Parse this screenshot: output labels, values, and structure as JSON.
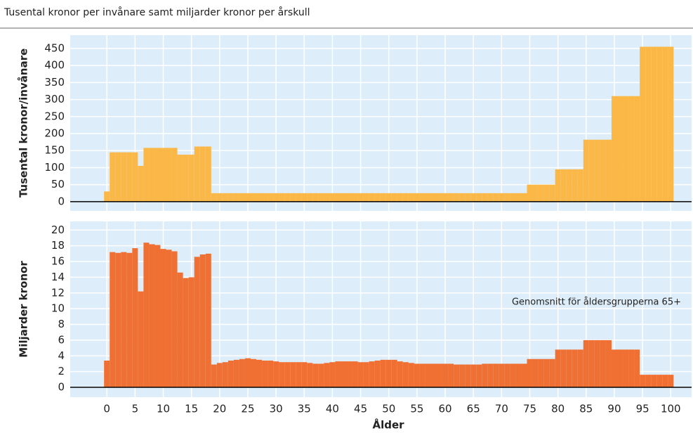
{
  "chart_data": [
    {
      "type": "bar",
      "title": "Tusental kronor per invånare samt miljarder kronor per årskull",
      "ylabel": "Tusental kronor/invånare",
      "color": "#fbb847",
      "x": [
        0,
        1,
        2,
        3,
        4,
        5,
        6,
        7,
        8,
        9,
        10,
        11,
        12,
        13,
        14,
        15,
        16,
        17,
        18,
        19,
        20,
        21,
        22,
        23,
        24,
        25,
        26,
        27,
        28,
        29,
        30,
        31,
        32,
        33,
        34,
        35,
        36,
        37,
        38,
        39,
        40,
        41,
        42,
        43,
        44,
        45,
        46,
        47,
        48,
        49,
        50,
        51,
        52,
        53,
        54,
        55,
        56,
        57,
        58,
        59,
        60,
        61,
        62,
        63,
        64,
        65,
        66,
        67,
        68,
        69,
        70,
        71,
        72,
        73,
        74,
        75,
        76,
        77,
        78,
        79,
        80,
        81,
        82,
        83,
        84,
        85,
        86,
        87,
        88,
        89,
        90,
        91,
        92,
        93,
        94,
        95,
        96,
        97,
        98,
        99,
        100
      ],
      "values": [
        30,
        145,
        145,
        145,
        145,
        145,
        105,
        158,
        158,
        158,
        158,
        158,
        158,
        138,
        138,
        138,
        162,
        162,
        162,
        25,
        25,
        25,
        25,
        25,
        25,
        25,
        25,
        25,
        25,
        25,
        25,
        25,
        25,
        25,
        25,
        25,
        25,
        25,
        25,
        25,
        25,
        25,
        25,
        25,
        25,
        25,
        25,
        25,
        25,
        25,
        25,
        25,
        25,
        25,
        25,
        25,
        25,
        25,
        25,
        25,
        25,
        25,
        25,
        25,
        25,
        25,
        25,
        25,
        25,
        25,
        25,
        25,
        25,
        25,
        25,
        50,
        50,
        50,
        50,
        50,
        95,
        95,
        95,
        95,
        95,
        182,
        182,
        182,
        182,
        182,
        310,
        310,
        310,
        310,
        310,
        455,
        455,
        455,
        455,
        455,
        455
      ],
      "xlim": [
        -6.5,
        103.7
      ],
      "ylim": [
        -27,
        489
      ],
      "yticks": [
        0,
        50,
        100,
        150,
        200,
        250,
        300,
        350,
        400,
        450
      ],
      "grid": true
    },
    {
      "type": "bar",
      "ylabel": "Miljarder kronor",
      "xlabel": "Ålder",
      "annotation": "Genomsnitt för åldersgrupperna 65+",
      "color": "#f07033",
      "x": [
        0,
        1,
        2,
        3,
        4,
        5,
        6,
        7,
        8,
        9,
        10,
        11,
        12,
        13,
        14,
        15,
        16,
        17,
        18,
        19,
        20,
        21,
        22,
        23,
        24,
        25,
        26,
        27,
        28,
        29,
        30,
        31,
        32,
        33,
        34,
        35,
        36,
        37,
        38,
        39,
        40,
        41,
        42,
        43,
        44,
        45,
        46,
        47,
        48,
        49,
        50,
        51,
        52,
        53,
        54,
        55,
        56,
        57,
        58,
        59,
        60,
        61,
        62,
        63,
        64,
        65,
        66,
        67,
        68,
        69,
        70,
        71,
        72,
        73,
        74,
        75,
        76,
        77,
        78,
        79,
        80,
        81,
        82,
        83,
        84,
        85,
        86,
        87,
        88,
        89,
        90,
        91,
        92,
        93,
        94,
        95,
        96,
        97,
        98,
        99,
        100
      ],
      "values": [
        3.4,
        17.2,
        17.1,
        17.2,
        17.1,
        17.7,
        12.2,
        18.4,
        18.2,
        18.1,
        17.6,
        17.5,
        17.3,
        14.6,
        13.9,
        14.0,
        16.6,
        16.9,
        17.0,
        2.9,
        3.1,
        3.2,
        3.4,
        3.5,
        3.6,
        3.7,
        3.6,
        3.5,
        3.4,
        3.4,
        3.3,
        3.2,
        3.2,
        3.2,
        3.2,
        3.2,
        3.1,
        3.0,
        3.0,
        3.1,
        3.2,
        3.3,
        3.3,
        3.3,
        3.3,
        3.2,
        3.2,
        3.3,
        3.4,
        3.5,
        3.5,
        3.5,
        3.3,
        3.2,
        3.1,
        3.0,
        3.0,
        3.0,
        3.0,
        3.0,
        3.0,
        3.0,
        2.9,
        2.9,
        2.9,
        2.9,
        2.9,
        3.0,
        3.0,
        3.0,
        3.0,
        3.0,
        3.0,
        3.0,
        3.0,
        3.6,
        3.6,
        3.6,
        3.6,
        3.6,
        4.8,
        4.8,
        4.8,
        4.8,
        4.8,
        6.0,
        6.0,
        6.0,
        6.0,
        6.0,
        4.8,
        4.8,
        4.8,
        4.8,
        4.8,
        1.6,
        1.6,
        1.6,
        1.6,
        1.6,
        1.6
      ],
      "xlim": [
        -6.5,
        103.7
      ],
      "ylim": [
        -1.25,
        21.1
      ],
      "xticks": [
        0,
        5,
        10,
        15,
        20,
        25,
        30,
        35,
        40,
        45,
        50,
        55,
        60,
        65,
        70,
        75,
        80,
        85,
        90,
        95,
        100
      ],
      "yticks": [
        0,
        2,
        4,
        6,
        8,
        10,
        12,
        14,
        16,
        18,
        20
      ],
      "grid": true
    }
  ]
}
